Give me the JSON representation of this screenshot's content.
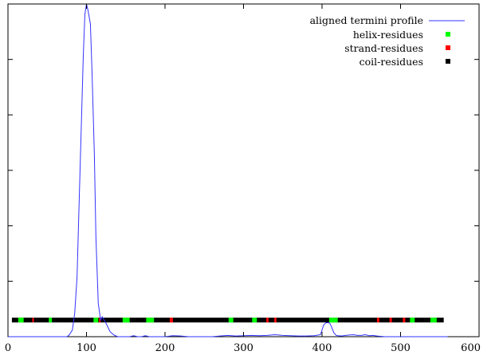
{
  "chart_data": {
    "type": "line",
    "title": "",
    "xlabel": "",
    "ylabel": "",
    "xlim": [
      0,
      600
    ],
    "ylim": [
      0,
      1
    ],
    "grid": false,
    "legend_position": "top-right",
    "x_ticks": [
      "0",
      "100",
      "200",
      "300",
      "400",
      "500",
      "600"
    ],
    "x_tick_values": [
      0,
      100,
      200,
      300,
      400,
      500,
      600
    ],
    "y_tick_values": [
      0.1667,
      0.3333,
      0.5,
      0.6667,
      0.8333
    ],
    "series": [
      {
        "name": "aligned termini profile",
        "kind": "line",
        "color": "#3333ff",
        "x": [
          0,
          75,
          78,
          82,
          85,
          88,
          90,
          93,
          96,
          98,
          100,
          102,
          105,
          107,
          110,
          112,
          115,
          118,
          120,
          125,
          130,
          135,
          140,
          145,
          150,
          155,
          160,
          165,
          170,
          175,
          180,
          185,
          190,
          195,
          200,
          210,
          220,
          230,
          240,
          250,
          260,
          270,
          280,
          290,
          300,
          310,
          320,
          330,
          340,
          350,
          360,
          370,
          380,
          390,
          398,
          400,
          402,
          405,
          408,
          410,
          412,
          415,
          418,
          420,
          425,
          430,
          435,
          440,
          445,
          450,
          455,
          460,
          465,
          470,
          480,
          490,
          500,
          510,
          520,
          530,
          540,
          550,
          560
        ],
        "y": [
          0,
          0,
          0.005,
          0.02,
          0.07,
          0.18,
          0.35,
          0.6,
          0.85,
          0.97,
          1.0,
          0.98,
          0.94,
          0.8,
          0.55,
          0.3,
          0.1,
          0.05,
          0.06,
          0.04,
          0.015,
          0.005,
          0,
          0,
          0,
          0,
          0.003,
          0,
          0,
          0.003,
          0,
          0,
          0,
          0,
          0,
          0.003,
          0.002,
          0,
          0,
          0,
          0,
          0.002,
          0.004,
          0.002,
          0.003,
          0.004,
          0.003,
          0.004,
          0.006,
          0.004,
          0.003,
          0.002,
          0.002,
          0.003,
          0.006,
          0.02,
          0.035,
          0.042,
          0.042,
          0.04,
          0.03,
          0.012,
          0.004,
          0.003,
          0.002,
          0.004,
          0.005,
          0.006,
          0.004,
          0.004,
          0.006,
          0.003,
          0.004,
          0.002,
          0,
          0,
          0,
          0,
          0,
          0,
          0,
          0,
          0
        ]
      },
      {
        "name": "helix-residues",
        "kind": "marker",
        "color": "#00ff00",
        "y_level": 0.05,
        "segments": [
          [
            13,
            20
          ],
          [
            52,
            56
          ],
          [
            109,
            115
          ],
          [
            146,
            155
          ],
          [
            176,
            186
          ],
          [
            281,
            287
          ],
          [
            311,
            317
          ],
          [
            409,
            420
          ],
          [
            512,
            518
          ],
          [
            538,
            546
          ]
        ]
      },
      {
        "name": "strand-residues",
        "kind": "marker",
        "color": "#ff0000",
        "y_level": 0.05,
        "segments": [
          [
            31,
            33
          ],
          [
            116,
            118
          ],
          [
            206,
            210
          ],
          [
            329,
            332
          ],
          [
            339,
            342
          ],
          [
            470,
            473
          ],
          [
            486,
            489
          ],
          [
            503,
            506
          ]
        ]
      },
      {
        "name": "coil-residues",
        "kind": "marker",
        "color": "#000000",
        "y_level": 0.05,
        "segments": [
          [
            5,
            555
          ]
        ]
      }
    ]
  }
}
